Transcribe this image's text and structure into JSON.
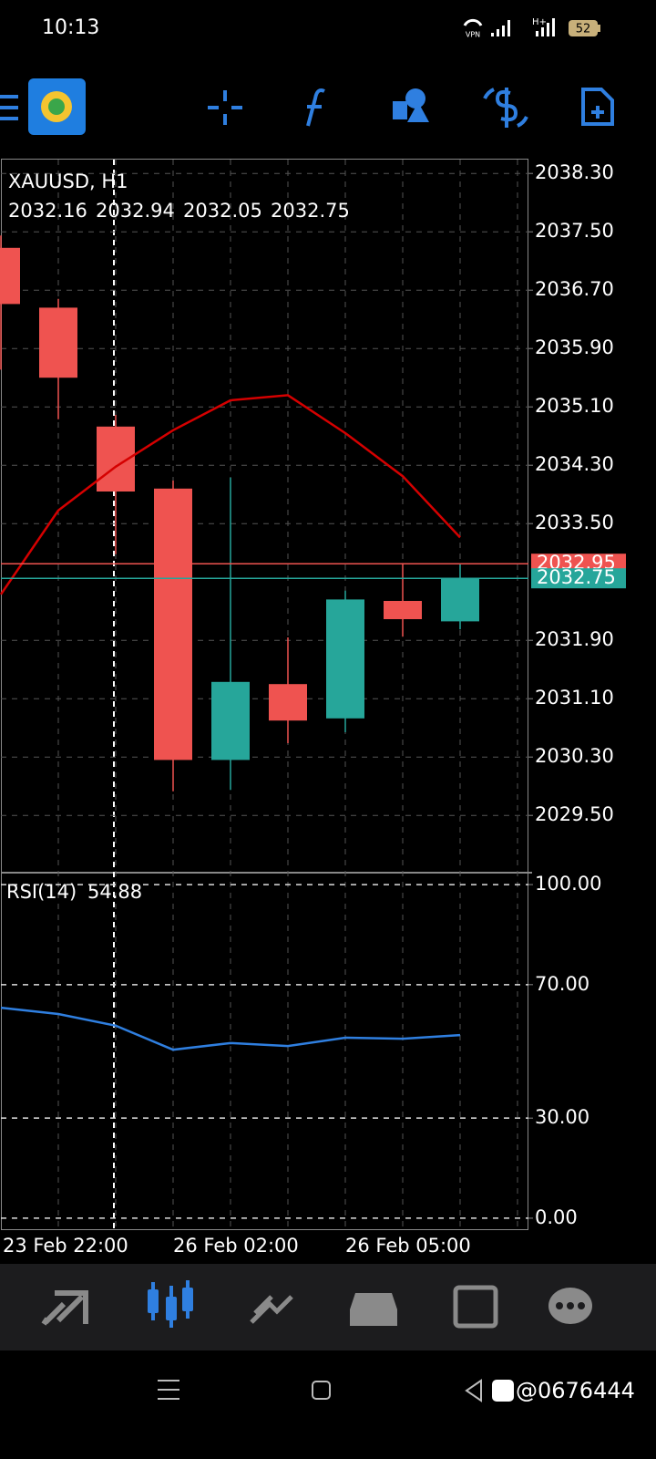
{
  "status_bar": {
    "time": "10:13",
    "vpn": "VPN",
    "network": "H+",
    "battery": "52"
  },
  "chart_data": [
    {
      "type": "candlestick",
      "title": "XAUUSD, H1",
      "categories": [
        "23 Feb 22:00",
        null,
        null,
        "26 Feb 02:00",
        null,
        null,
        "26 Feb 05:00",
        null,
        null
      ],
      "open": [
        2037.28,
        2036.46,
        2034.83,
        2033.98,
        2030.26,
        2031.3,
        2030.83,
        2032.44,
        2032.16
      ],
      "high": [
        2037.45,
        2036.58,
        2034.99,
        2034.09,
        2034.13,
        2031.94,
        2032.58,
        2032.96,
        2032.94
      ],
      "low": [
        2035.61,
        2034.93,
        2033.08,
        2029.83,
        2029.85,
        2030.49,
        2030.64,
        2031.95,
        2032.05
      ],
      "close": [
        2036.51,
        2035.5,
        2033.94,
        2030.26,
        2031.33,
        2030.8,
        2032.46,
        2032.19,
        2032.75
      ],
      "up_color": "#26a69a",
      "down_color": "#ef5350",
      "series": [
        {
          "color": "#d50000",
          "values": [
            2032.53,
            2033.68,
            2034.28,
            2034.78,
            2035.19,
            2035.26,
            2034.74,
            2034.15,
            2033.31
          ]
        }
      ],
      "bid_price": 2032.95,
      "bid_color": "#ef5350",
      "ylim": [
        2028.74,
        2038.49
      ],
      "yticks": [
        {
          "value": 2038.3,
          "label": "2038.30"
        },
        {
          "value": 2037.5,
          "label": "2037.50"
        },
        {
          "value": 2036.7,
          "label": "2036.70"
        },
        {
          "value": 2035.9,
          "label": "2035.90"
        },
        {
          "value": 2035.1,
          "label": "2035.10"
        },
        {
          "value": 2034.3,
          "label": "2034.30"
        },
        {
          "value": 2033.5,
          "label": "2033.50"
        },
        {
          "value": 2031.9,
          "label": "2031.90"
        },
        {
          "value": 2031.1,
          "label": "2031.10"
        },
        {
          "value": 2030.3,
          "label": "2030.30"
        },
        {
          "value": 2029.5,
          "label": "2029.50"
        }
      ],
      "grid": true
    },
    {
      "type": "line",
      "title": "RSI(14)",
      "series": [
        {
          "color": "#2f7fe0",
          "values": [
            63.1,
            61.2,
            57.7,
            50.5,
            52.5,
            51.6,
            54.1,
            53.8,
            54.88
          ]
        }
      ],
      "ylim": [
        -3.3,
        103.3
      ],
      "yticks": [
        {
          "value": 100,
          "label": "100.00"
        },
        {
          "value": 70,
          "label": "70.00"
        },
        {
          "value": 30,
          "label": "30.00"
        },
        {
          "value": 0,
          "label": "0.00"
        }
      ],
      "grid": true
    }
  ],
  "watermark": "@0676444"
}
